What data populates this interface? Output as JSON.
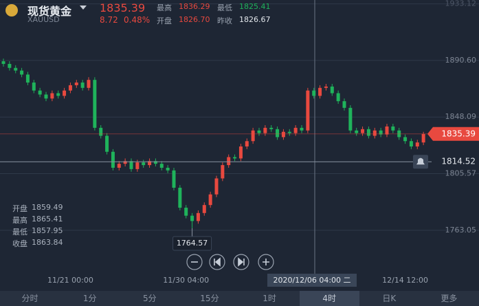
{
  "header": {
    "name": "现货黄金",
    "code": "XAUUSD",
    "price": "1835.39",
    "change": "8.72",
    "change_pct": "0.48%",
    "stats": [
      {
        "label": "最高",
        "value": "1836.29"
      },
      {
        "label": "开盘",
        "value": "1826.70"
      },
      {
        "label": "最低",
        "value": "1825.41"
      },
      {
        "label": "昨收",
        "value": "1826.67"
      }
    ]
  },
  "ohlc_panel": [
    {
      "label": "开盘",
      "value": "1859.49"
    },
    {
      "label": "最高",
      "value": "1865.41"
    },
    {
      "label": "最低",
      "value": "1857.95"
    },
    {
      "label": "收盘",
      "value": "1863.84"
    }
  ],
  "chart_data": {
    "type": "candlestick",
    "up_color": "#e8493f",
    "down_color": "#1fb35b",
    "categories": [
      null,
      null,
      null,
      null,
      null,
      null,
      null,
      null,
      null,
      null,
      null,
      "11/21 00:00",
      null,
      null,
      null,
      null,
      null,
      null,
      null,
      null,
      null,
      null,
      null,
      null,
      null,
      null,
      null,
      null,
      null,
      null,
      "11/30 04:00",
      null,
      null,
      null,
      null,
      null,
      null,
      null,
      null,
      null,
      null,
      null,
      null,
      null,
      null,
      null,
      null,
      null,
      null,
      null,
      null,
      null,
      null,
      null,
      null,
      null,
      null,
      null,
      null,
      null,
      null,
      null,
      null,
      null,
      null,
      null,
      "12/14 12:00",
      null,
      null,
      null
    ],
    "open": [
      1890,
      1888,
      1885,
      1883,
      1880,
      1874,
      1868,
      1865,
      1862,
      1866,
      1864,
      1868,
      1872,
      1874,
      1870,
      1876,
      1840,
      1834,
      1822,
      1810,
      1813,
      1815,
      1809,
      1814,
      1812,
      1815,
      1813,
      1810,
      1808,
      1795,
      1780,
      1774,
      1770,
      1776,
      1782,
      1790,
      1802,
      1812,
      1818,
      1817,
      1826,
      1830,
      1838,
      1836,
      1840,
      1839,
      1833,
      1837,
      1836,
      1840,
      1838,
      1868,
      1864,
      1870,
      1871,
      1866,
      1860,
      1855,
      1838,
      1836,
      1839,
      1834,
      1838,
      1835,
      1841,
      1838,
      1833,
      1830,
      1826,
      1829
    ],
    "high": [
      1892,
      1890,
      1887,
      1885,
      1882,
      1876,
      1870,
      1867,
      1868,
      1868,
      1870,
      1874,
      1876,
      1876,
      1878,
      1878,
      1842,
      1836,
      1824,
      1815,
      1817,
      1817,
      1816,
      1816,
      1817,
      1817,
      1815,
      1812,
      1810,
      1797,
      1782,
      1776,
      1778,
      1784,
      1792,
      1804,
      1814,
      1820,
      1820,
      1828,
      1832,
      1840,
      1840,
      1842,
      1842,
      1841,
      1839,
      1839,
      1842,
      1842,
      1870,
      1870,
      1872,
      1873,
      1873,
      1868,
      1862,
      1857,
      1840,
      1841,
      1841,
      1840,
      1840,
      1843,
      1843,
      1840,
      1835,
      1832,
      1831,
      1837
    ],
    "low": [
      1886,
      1883,
      1881,
      1878,
      1872,
      1866,
      1863,
      1860,
      1860,
      1862,
      1862,
      1866,
      1870,
      1868,
      1868,
      1838,
      1832,
      1820,
      1808,
      1808,
      1811,
      1807,
      1807,
      1810,
      1810,
      1811,
      1808,
      1806,
      1793,
      1778,
      1772,
      1764.57,
      1768,
      1774,
      1780,
      1788,
      1800,
      1810,
      1815,
      1815,
      1824,
      1828,
      1834,
      1834,
      1837,
      1831,
      1831,
      1834,
      1834,
      1836,
      1836,
      1862,
      1862,
      1868,
      1864,
      1858,
      1853,
      1836,
      1834,
      1834,
      1832,
      1832,
      1833,
      1833,
      1836,
      1831,
      1828,
      1824,
      1824,
      1827
    ],
    "close": [
      1888,
      1885,
      1883,
      1880,
      1874,
      1868,
      1865,
      1862,
      1866,
      1864,
      1868,
      1872,
      1874,
      1870,
      1876,
      1840,
      1834,
      1822,
      1810,
      1813,
      1815,
      1809,
      1814,
      1812,
      1815,
      1813,
      1810,
      1808,
      1795,
      1780,
      1774,
      1770,
      1776,
      1782,
      1790,
      1802,
      1812,
      1818,
      1817,
      1826,
      1830,
      1838,
      1836,
      1840,
      1839,
      1833,
      1837,
      1836,
      1840,
      1838,
      1868,
      1864,
      1870,
      1871,
      1866,
      1860,
      1855,
      1838,
      1836,
      1839,
      1834,
      1838,
      1835,
      1841,
      1838,
      1833,
      1830,
      1826,
      1829,
      1835.39
    ],
    "ylim": [
      1732,
      1936
    ],
    "yticks": [
      1933.12,
      {
        "value": 1890.6,
        "label": "1890.60"
      },
      1848.09,
      1805.57,
      1763.05
    ],
    "grid": true,
    "crosshair": {
      "time_label": "2020/12/06 04:00 二",
      "price": 1814.52
    }
  },
  "tabs": [
    "分时",
    "1分",
    "5分",
    "15分",
    "1时",
    "4时",
    "日K",
    "更多"
  ]
}
